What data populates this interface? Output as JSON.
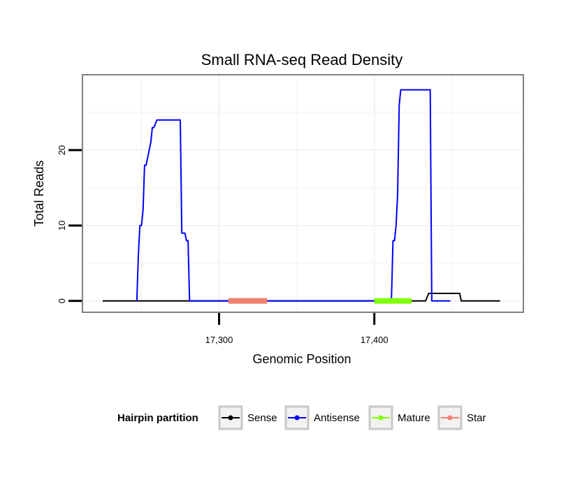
{
  "chart_data": {
    "type": "line",
    "title": "Small RNA-seq Read Density",
    "xlabel": "Genomic Position",
    "ylabel": "Total Reads",
    "xlim": [
      17212,
      17496
    ],
    "ylim": [
      -1.5,
      30
    ],
    "x_ticks": [
      17300,
      17400
    ],
    "x_tick_labels": [
      "17,300",
      "17,400"
    ],
    "y_ticks": [
      0,
      10,
      20
    ],
    "y_tick_labels": [
      "0",
      "10",
      "20"
    ],
    "grid": true,
    "legend_position": "bottom",
    "legend_title": "Hairpin partition",
    "series": [
      {
        "name": "Sense",
        "color": "#000000",
        "points": [
          [
            17225,
            0
          ],
          [
            17433,
            0
          ],
          [
            17435,
            1
          ],
          [
            17455,
            1
          ],
          [
            17456,
            0
          ],
          [
            17481,
            0
          ]
        ]
      },
      {
        "name": "Antisense",
        "color": "#0000ff",
        "points": [
          [
            17247,
            0
          ],
          [
            17248,
            6
          ],
          [
            17249,
            10
          ],
          [
            17250,
            10
          ],
          [
            17251,
            12
          ],
          [
            17252,
            18
          ],
          [
            17253,
            18
          ],
          [
            17254,
            19
          ],
          [
            17255,
            20
          ],
          [
            17256,
            21
          ],
          [
            17257,
            23
          ],
          [
            17258,
            23
          ],
          [
            17260,
            24
          ],
          [
            17275,
            24
          ],
          [
            17276,
            9
          ],
          [
            17278,
            9
          ],
          [
            17279,
            8
          ],
          [
            17280,
            8
          ],
          [
            17281,
            0
          ],
          [
            17411,
            0
          ],
          [
            17411.5,
            4
          ],
          [
            17412,
            8
          ],
          [
            17413,
            8
          ],
          [
            17414,
            10
          ],
          [
            17415,
            14
          ],
          [
            17416,
            26
          ],
          [
            17417,
            28
          ],
          [
            17436,
            28
          ],
          [
            17437,
            0
          ],
          [
            17449,
            0
          ]
        ]
      },
      {
        "name": "Mature",
        "color": "#7fff00",
        "points": [
          [
            17400,
            0
          ],
          [
            17424,
            0
          ]
        ]
      },
      {
        "name": "Star",
        "color": "#f08070",
        "points": [
          [
            17306,
            0
          ],
          [
            17331,
            0
          ]
        ]
      }
    ]
  }
}
